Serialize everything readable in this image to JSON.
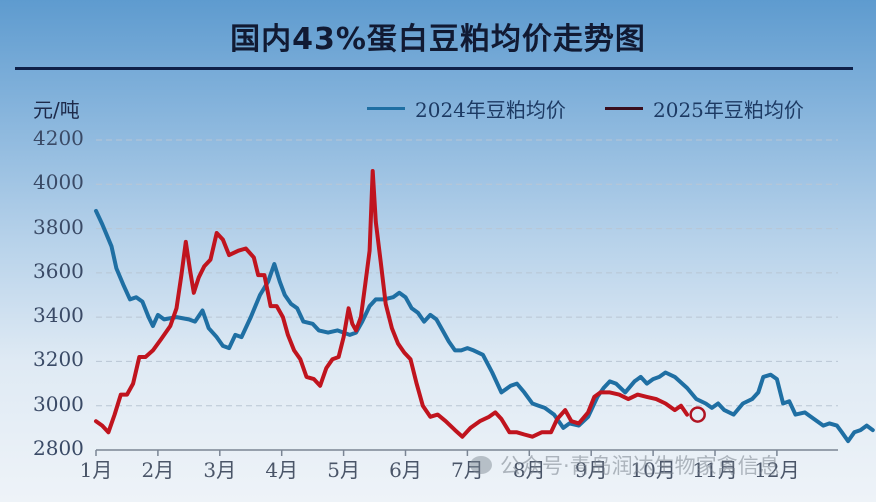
{
  "header": {
    "title": "国内43%蛋白豆粕均价走势图"
  },
  "axis": {
    "unit": "元/吨"
  },
  "legend": [
    {
      "label": "2024年豆粕均价",
      "color": "#1f6fa3"
    },
    {
      "label": "2025年豆粕均价",
      "color": "#c0141e"
    }
  ],
  "watermark": "公众号·青岛润达生物家禽信息",
  "chart_data": {
    "type": "line",
    "title": "国内43%蛋白豆粕均价走势图",
    "xlabel": "",
    "ylabel": "元/吨",
    "ylim": [
      2800,
      4200
    ],
    "yticks": [
      4200,
      4000,
      3800,
      3600,
      3400,
      3200,
      3000,
      2800
    ],
    "xticks": [
      "1月",
      "2月",
      "3月",
      "4月",
      "5月",
      "6月",
      "7月",
      "8月",
      "9月",
      "10月",
      "11月",
      "12月"
    ],
    "grid": true,
    "legend_position": "top-right",
    "x_unit": "month (1.0 = start of Jan, 13.0 = end of Dec)",
    "series": [
      {
        "name": "2024年豆粕均价",
        "color": "#1f6fa3",
        "points": [
          [
            1.0,
            3880
          ],
          [
            1.1,
            3820
          ],
          [
            1.25,
            3720
          ],
          [
            1.33,
            3620
          ],
          [
            1.45,
            3540
          ],
          [
            1.55,
            3480
          ],
          [
            1.65,
            3490
          ],
          [
            1.75,
            3470
          ],
          [
            1.85,
            3400
          ],
          [
            1.92,
            3360
          ],
          [
            2.0,
            3410
          ],
          [
            2.1,
            3390
          ],
          [
            2.3,
            3400
          ],
          [
            2.5,
            3390
          ],
          [
            2.6,
            3380
          ],
          [
            2.72,
            3430
          ],
          [
            2.82,
            3350
          ],
          [
            2.95,
            3310
          ],
          [
            3.05,
            3270
          ],
          [
            3.15,
            3260
          ],
          [
            3.25,
            3320
          ],
          [
            3.35,
            3310
          ],
          [
            3.5,
            3400
          ],
          [
            3.65,
            3500
          ],
          [
            3.78,
            3560
          ],
          [
            3.88,
            3640
          ],
          [
            3.97,
            3560
          ],
          [
            4.05,
            3500
          ],
          [
            4.15,
            3460
          ],
          [
            4.25,
            3440
          ],
          [
            4.35,
            3380
          ],
          [
            4.5,
            3370
          ],
          [
            4.6,
            3340
          ],
          [
            4.75,
            3330
          ],
          [
            4.9,
            3340
          ],
          [
            5.0,
            3330
          ],
          [
            5.1,
            3320
          ],
          [
            5.2,
            3330
          ],
          [
            5.3,
            3380
          ],
          [
            5.42,
            3450
          ],
          [
            5.52,
            3480
          ],
          [
            5.65,
            3480
          ],
          [
            5.8,
            3490
          ],
          [
            5.9,
            3510
          ],
          [
            6.0,
            3490
          ],
          [
            6.1,
            3440
          ],
          [
            6.2,
            3420
          ],
          [
            6.3,
            3380
          ],
          [
            6.4,
            3410
          ],
          [
            6.5,
            3390
          ],
          [
            6.6,
            3340
          ],
          [
            6.7,
            3290
          ],
          [
            6.8,
            3250
          ],
          [
            6.9,
            3250
          ],
          [
            7.0,
            3260
          ],
          [
            7.1,
            3250
          ],
          [
            7.25,
            3230
          ],
          [
            7.4,
            3150
          ],
          [
            7.55,
            3060
          ],
          [
            7.7,
            3090
          ],
          [
            7.8,
            3100
          ],
          [
            7.92,
            3060
          ],
          [
            8.05,
            3010
          ],
          [
            8.15,
            3000
          ],
          [
            8.25,
            2990
          ],
          [
            8.4,
            2960
          ],
          [
            8.55,
            2900
          ],
          [
            8.65,
            2920
          ],
          [
            8.8,
            2910
          ],
          [
            8.95,
            2950
          ],
          [
            9.1,
            3040
          ],
          [
            9.2,
            3080
          ],
          [
            9.3,
            3110
          ],
          [
            9.4,
            3100
          ],
          [
            9.55,
            3060
          ],
          [
            9.7,
            3110
          ],
          [
            9.8,
            3130
          ],
          [
            9.9,
            3100
          ],
          [
            10.0,
            3120
          ],
          [
            10.1,
            3130
          ],
          [
            10.2,
            3150
          ],
          [
            10.35,
            3130
          ],
          [
            10.55,
            3080
          ],
          [
            10.7,
            3030
          ],
          [
            10.85,
            3010
          ],
          [
            10.95,
            2990
          ],
          [
            11.05,
            3010
          ],
          [
            11.15,
            2980
          ],
          [
            11.3,
            2960
          ],
          [
            11.45,
            3010
          ],
          [
            11.6,
            3030
          ],
          [
            11.7,
            3060
          ],
          [
            11.78,
            3130
          ],
          [
            11.9,
            3140
          ],
          [
            12.0,
            3120
          ],
          [
            12.1,
            3010
          ],
          [
            12.2,
            3020
          ],
          [
            12.3,
            2960
          ],
          [
            12.45,
            2970
          ],
          [
            12.6,
            2940
          ],
          [
            12.75,
            2910
          ],
          [
            12.85,
            2920
          ],
          [
            12.97,
            2910
          ],
          [
            13.05,
            2880
          ],
          [
            13.15,
            2840
          ],
          [
            13.25,
            2880
          ],
          [
            13.35,
            2890
          ],
          [
            13.45,
            2910
          ],
          [
            13.55,
            2890
          ]
        ]
      },
      {
        "name": "2025年豆粕均价",
        "color": "#c0141e",
        "points": [
          [
            1.0,
            2930
          ],
          [
            1.1,
            2910
          ],
          [
            1.2,
            2880
          ],
          [
            1.3,
            2960
          ],
          [
            1.4,
            3050
          ],
          [
            1.5,
            3050
          ],
          [
            1.6,
            3100
          ],
          [
            1.7,
            3220
          ],
          [
            1.8,
            3220
          ],
          [
            1.92,
            3250
          ],
          [
            2.05,
            3300
          ],
          [
            2.2,
            3360
          ],
          [
            2.3,
            3440
          ],
          [
            2.38,
            3590
          ],
          [
            2.45,
            3740
          ],
          [
            2.52,
            3610
          ],
          [
            2.58,
            3510
          ],
          [
            2.66,
            3580
          ],
          [
            2.75,
            3630
          ],
          [
            2.85,
            3660
          ],
          [
            2.95,
            3780
          ],
          [
            3.05,
            3750
          ],
          [
            3.15,
            3680
          ],
          [
            3.3,
            3700
          ],
          [
            3.42,
            3710
          ],
          [
            3.55,
            3670
          ],
          [
            3.62,
            3590
          ],
          [
            3.72,
            3590
          ],
          [
            3.82,
            3450
          ],
          [
            3.92,
            3450
          ],
          [
            4.02,
            3400
          ],
          [
            4.1,
            3320
          ],
          [
            4.2,
            3250
          ],
          [
            4.3,
            3210
          ],
          [
            4.4,
            3130
          ],
          [
            4.52,
            3120
          ],
          [
            4.62,
            3090
          ],
          [
            4.72,
            3170
          ],
          [
            4.82,
            3210
          ],
          [
            4.92,
            3220
          ],
          [
            5.0,
            3310
          ],
          [
            5.08,
            3440
          ],
          [
            5.14,
            3370
          ],
          [
            5.2,
            3340
          ],
          [
            5.28,
            3400
          ],
          [
            5.35,
            3550
          ],
          [
            5.42,
            3700
          ],
          [
            5.47,
            4060
          ],
          [
            5.52,
            3830
          ],
          [
            5.6,
            3650
          ],
          [
            5.68,
            3460
          ],
          [
            5.78,
            3350
          ],
          [
            5.88,
            3280
          ],
          [
            5.98,
            3240
          ],
          [
            6.08,
            3210
          ],
          [
            6.18,
            3100
          ],
          [
            6.28,
            3000
          ],
          [
            6.4,
            2950
          ],
          [
            6.52,
            2960
          ],
          [
            6.65,
            2930
          ],
          [
            6.8,
            2890
          ],
          [
            6.92,
            2860
          ],
          [
            7.05,
            2900
          ],
          [
            7.2,
            2930
          ],
          [
            7.35,
            2950
          ],
          [
            7.45,
            2970
          ],
          [
            7.55,
            2940
          ],
          [
            7.68,
            2880
          ],
          [
            7.8,
            2880
          ],
          [
            7.92,
            2870
          ],
          [
            8.05,
            2860
          ],
          [
            8.2,
            2880
          ],
          [
            8.35,
            2880
          ],
          [
            8.45,
            2940
          ],
          [
            8.58,
            2980
          ],
          [
            8.68,
            2930
          ],
          [
            8.8,
            2920
          ],
          [
            8.95,
            2970
          ],
          [
            9.05,
            3040
          ],
          [
            9.15,
            3060
          ],
          [
            9.3,
            3060
          ],
          [
            9.45,
            3050
          ],
          [
            9.6,
            3030
          ],
          [
            9.75,
            3050
          ],
          [
            9.9,
            3040
          ],
          [
            10.05,
            3030
          ],
          [
            10.2,
            3010
          ],
          [
            10.35,
            2980
          ],
          [
            10.45,
            3000
          ],
          [
            10.55,
            2960
          ]
        ],
        "end_marker": {
          "x": 10.72,
          "y": 2960,
          "shape": "open-circle"
        }
      }
    ]
  }
}
